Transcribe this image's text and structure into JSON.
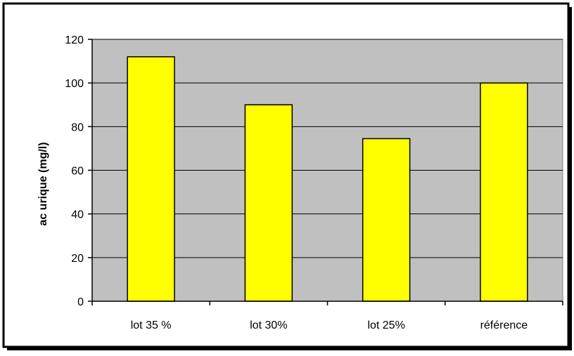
{
  "chart_data": {
    "type": "bar",
    "title": "",
    "xlabel": "",
    "ylabel": "ac urique (mg/l)",
    "categories": [
      "lot 35 %",
      "lot 30%",
      "lot 25%",
      "référence"
    ],
    "values": [
      112,
      90,
      74.5,
      100
    ],
    "ylim": [
      0,
      120
    ],
    "yticks": [
      0,
      20,
      40,
      60,
      80,
      100,
      120
    ],
    "grid": true,
    "legend": "none",
    "colors": {
      "bar_fill": "#ffff00",
      "bar_stroke": "#000000",
      "plot_background": "#c0c0c0",
      "chart_background": "#ffffff",
      "border": "#000000",
      "gridline": "#000000"
    }
  }
}
